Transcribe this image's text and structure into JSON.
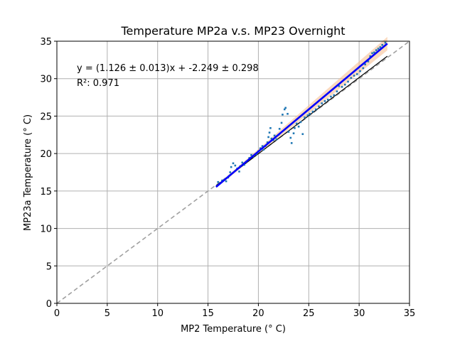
{
  "chart_data": {
    "type": "scatter",
    "title": "Temperature MP2a v.s. MP23 Overnight",
    "xlabel": "MP2 Temperature (° C)",
    "ylabel": "MP23a Temperature (° C)",
    "xlim": [
      0,
      35
    ],
    "ylim": [
      0,
      35
    ],
    "xticks": [
      0,
      5,
      10,
      15,
      20,
      25,
      30,
      35
    ],
    "yticks": [
      0,
      5,
      10,
      15,
      20,
      25,
      30,
      35
    ],
    "grid": true,
    "annotations": {
      "equation": "y = (1.126 ± 0.013)x + -2.249 ± 0.298",
      "r2": "R²: 0.971"
    },
    "colors": {
      "points": "#1f77b4",
      "fit": "#0000ff",
      "fit_band": "#f5b98a",
      "reference": "#000000",
      "identity": "#a0a0a0",
      "grid": "#b0b0b0"
    },
    "series": [
      {
        "type": "scatter",
        "values": [
          [
            16.0,
            16.2
          ],
          [
            16.4,
            16.4
          ],
          [
            16.8,
            16.3
          ],
          [
            17.0,
            16.8
          ],
          [
            17.2,
            17.5
          ],
          [
            17.3,
            18.2
          ],
          [
            17.5,
            18.7
          ],
          [
            17.7,
            18.4
          ],
          [
            17.9,
            18.0
          ],
          [
            18.1,
            17.6
          ],
          [
            18.2,
            18.3
          ],
          [
            18.4,
            18.8
          ],
          [
            18.6,
            18.5
          ],
          [
            18.8,
            18.9
          ],
          [
            19.1,
            19.4
          ],
          [
            19.3,
            19.8
          ],
          [
            19.5,
            19.6
          ],
          [
            19.8,
            19.9
          ],
          [
            20.0,
            20.3
          ],
          [
            20.2,
            20.7
          ],
          [
            20.4,
            21.0
          ],
          [
            20.5,
            20.5
          ],
          [
            20.7,
            21.0
          ],
          [
            20.9,
            21.5
          ],
          [
            21.0,
            22.2
          ],
          [
            21.1,
            22.8
          ],
          [
            21.2,
            23.4
          ],
          [
            21.3,
            22.0
          ],
          [
            21.5,
            21.8
          ],
          [
            21.6,
            22.4
          ],
          [
            21.8,
            21.9
          ],
          [
            22.0,
            22.5
          ],
          [
            22.1,
            23.3
          ],
          [
            22.3,
            24.1
          ],
          [
            22.4,
            25.2
          ],
          [
            22.6,
            25.9
          ],
          [
            22.7,
            26.1
          ],
          [
            22.9,
            25.3
          ],
          [
            23.0,
            22.9
          ],
          [
            23.2,
            22.1
          ],
          [
            23.3,
            21.4
          ],
          [
            23.5,
            22.7
          ],
          [
            23.6,
            23.4
          ],
          [
            23.8,
            24.0
          ],
          [
            24.0,
            23.6
          ],
          [
            24.2,
            24.2
          ],
          [
            24.4,
            22.6
          ],
          [
            24.6,
            24.8
          ],
          [
            24.9,
            25.1
          ],
          [
            25.1,
            25.3
          ],
          [
            25.4,
            25.6
          ],
          [
            25.7,
            25.9
          ],
          [
            26.0,
            26.3
          ],
          [
            26.3,
            26.7
          ],
          [
            26.6,
            27.0
          ],
          [
            26.9,
            27.2
          ],
          [
            27.2,
            27.6
          ],
          [
            27.5,
            27.8
          ],
          [
            27.8,
            28.3
          ],
          [
            28.0,
            29.0
          ],
          [
            28.3,
            28.9
          ],
          [
            28.6,
            29.2
          ],
          [
            28.9,
            29.6
          ],
          [
            29.2,
            30.1
          ],
          [
            29.5,
            30.4
          ],
          [
            29.8,
            30.6
          ],
          [
            30.1,
            31.0
          ],
          [
            30.4,
            31.4
          ],
          [
            30.6,
            31.9
          ],
          [
            30.9,
            32.3
          ],
          [
            31.1,
            33.0
          ],
          [
            31.3,
            33.4
          ],
          [
            31.5,
            33.5
          ],
          [
            31.7,
            33.8
          ],
          [
            31.9,
            34.0
          ],
          [
            32.1,
            34.2
          ],
          [
            32.3,
            34.5
          ],
          [
            32.6,
            34.8
          ]
        ]
      },
      {
        "type": "fit",
        "slope": 1.126,
        "intercept": -2.249,
        "x_range": [
          15.8,
          32.8
        ]
      },
      {
        "type": "reference-line",
        "points": [
          [
            15.8,
            15.7
          ],
          [
            32.8,
            33.0
          ]
        ]
      },
      {
        "type": "identity-line",
        "points": [
          [
            0,
            0
          ],
          [
            35,
            35
          ]
        ]
      }
    ]
  }
}
